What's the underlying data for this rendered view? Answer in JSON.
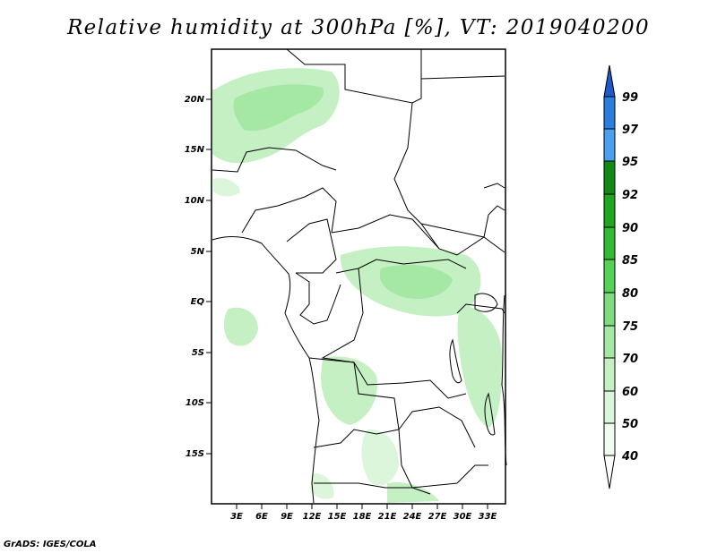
{
  "map": {
    "title": "Relative humidity at 300hPa [%], VT: 2019040200",
    "credit": "GrADS: IGES/COLA",
    "lat_labels": [
      "20N",
      "15N",
      "10N",
      "5N",
      "EQ",
      "5S",
      "10S",
      "15S"
    ],
    "lon_labels": [
      "3E",
      "6E",
      "9E",
      "12E",
      "15E",
      "18E",
      "21E",
      "24E",
      "27E",
      "30E",
      "33E"
    ],
    "extent": {
      "lon_min": 0,
      "lon_max": 35,
      "lat_min": -20,
      "lat_max": 25
    },
    "variable": "relative humidity",
    "level": "300hPa",
    "unit": "%",
    "valid_time": "2019040200"
  },
  "colorbar": {
    "levels": [
      "99",
      "97",
      "95",
      "92",
      "90",
      "85",
      "80",
      "75",
      "70",
      "60",
      "50",
      "40"
    ],
    "colors": {
      "top_arrow": "#1e5ac8",
      "97_99": "#2a7ee0",
      "95_97": "#4aa0ee",
      "92_95": "#118a11",
      "90_92": "#1ea61e",
      "85_90": "#33bb33",
      "80_85": "#55d255",
      "75_80": "#7ede7e",
      "70_75": "#a4e8a4",
      "60_70": "#c4f0c4",
      "50_60": "#dcf6dc",
      "40_50": "#f0fcf0",
      "bottom_arrow": "#ffffff"
    }
  }
}
